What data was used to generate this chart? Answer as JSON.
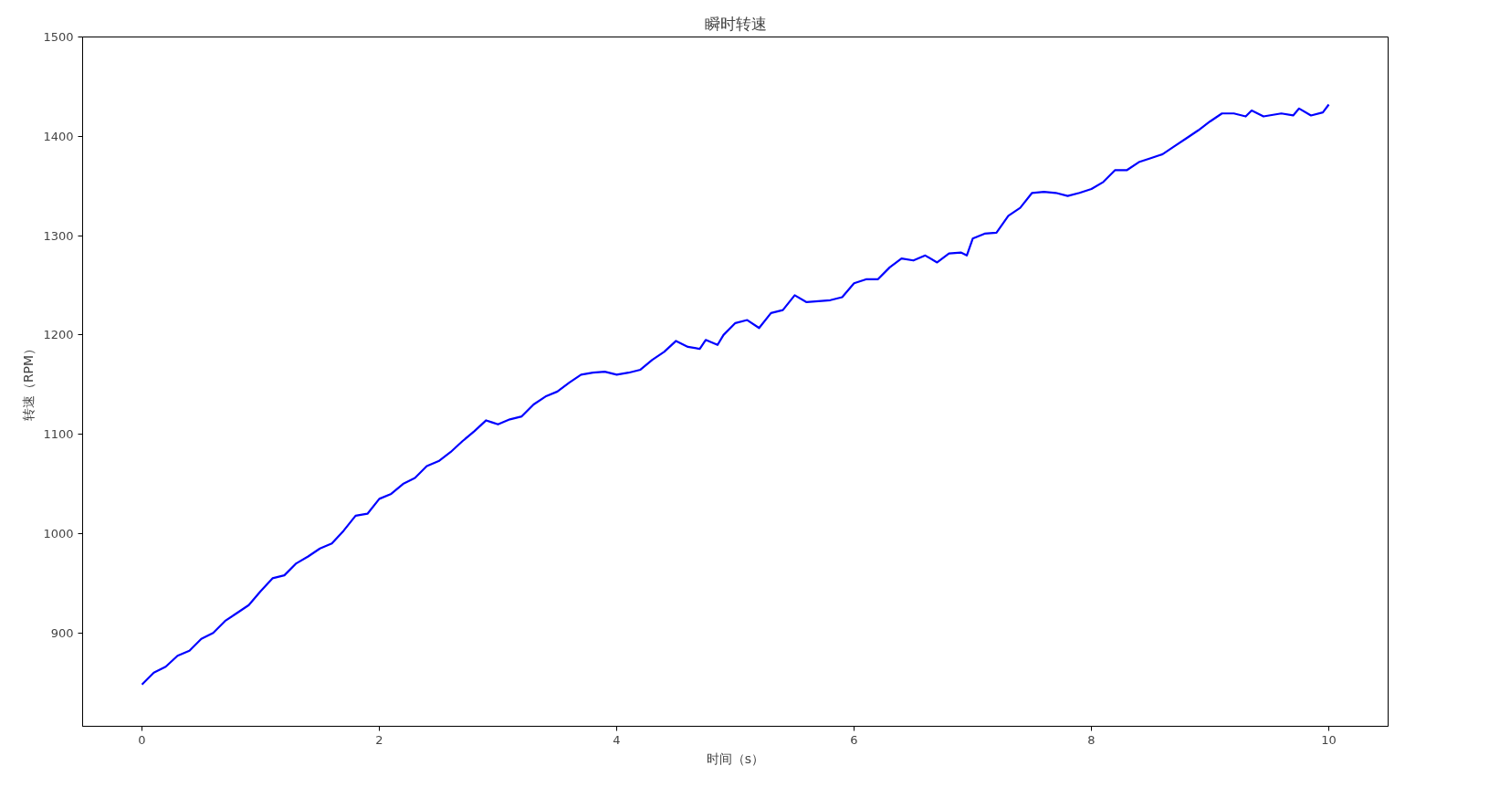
{
  "chart_data": {
    "type": "line",
    "title": "瞬时转速",
    "xlabel": "时间（s）",
    "ylabel": "转速（RPM）",
    "x": [
      0,
      0.1,
      0.2,
      0.3,
      0.4,
      0.5,
      0.6,
      0.7,
      0.8,
      0.9,
      1.0,
      1.1,
      1.2,
      1.3,
      1.4,
      1.5,
      1.6,
      1.7,
      1.8,
      1.9,
      2.0,
      2.1,
      2.2,
      2.3,
      2.4,
      2.5,
      2.6,
      2.7,
      2.8,
      2.9,
      2.95,
      3.0,
      3.1,
      3.2,
      3.3,
      3.4,
      3.5,
      3.6,
      3.7,
      3.8,
      3.9,
      4.0,
      4.1,
      4.2,
      4.3,
      4.4,
      4.5,
      4.6,
      4.7,
      4.75,
      4.85,
      4.9,
      5.0,
      5.1,
      5.2,
      5.3,
      5.4,
      5.5,
      5.6,
      5.7,
      5.8,
      5.9,
      6.0,
      6.1,
      6.2,
      6.3,
      6.4,
      6.5,
      6.6,
      6.7,
      6.8,
      6.9,
      6.95,
      7.0,
      7.1,
      7.2,
      7.3,
      7.4,
      7.5,
      7.6,
      7.7,
      7.8,
      7.9,
      8.0,
      8.1,
      8.2,
      8.3,
      8.4,
      8.5,
      8.6,
      8.7,
      8.8,
      8.9,
      9.0,
      9.1,
      9.2,
      9.3,
      9.35,
      9.45,
      9.6,
      9.7,
      9.75,
      9.85,
      9.95,
      10.0
    ],
    "series": [
      {
        "color": "#0000ff",
        "values": [
          848,
          860,
          866,
          877,
          882,
          894,
          900,
          912,
          920,
          928,
          942,
          955,
          958,
          970,
          977,
          985,
          990,
          1003,
          1018,
          1020,
          1035,
          1040,
          1050,
          1056,
          1068,
          1073,
          1082,
          1093,
          1103,
          1114,
          1112,
          1110,
          1115,
          1118,
          1130,
          1138,
          1143,
          1152,
          1160,
          1162,
          1163,
          1160,
          1162,
          1165,
          1175,
          1183,
          1194,
          1188,
          1186,
          1195,
          1190,
          1200,
          1212,
          1215,
          1207,
          1222,
          1225,
          1240,
          1233,
          1234,
          1235,
          1238,
          1252,
          1256,
          1256,
          1268,
          1277,
          1275,
          1280,
          1273,
          1282,
          1283,
          1280,
          1297,
          1302,
          1303,
          1320,
          1328,
          1343,
          1344,
          1343,
          1340,
          1343,
          1347,
          1354,
          1366,
          1366,
          1374,
          1378,
          1382,
          1390,
          1398,
          1406,
          1415,
          1423,
          1423,
          1420,
          1426,
          1420,
          1423,
          1421,
          1428,
          1421,
          1424,
          1432
        ]
      }
    ],
    "xlim": [
      -0.5,
      10.5
    ],
    "ylim": [
      806,
      1500
    ],
    "xticks": [
      0,
      2,
      4,
      6,
      8,
      10
    ],
    "yticks": [
      900,
      1000,
      1100,
      1200,
      1300,
      1400,
      1500
    ],
    "line_style": "solid",
    "marker": "none"
  }
}
